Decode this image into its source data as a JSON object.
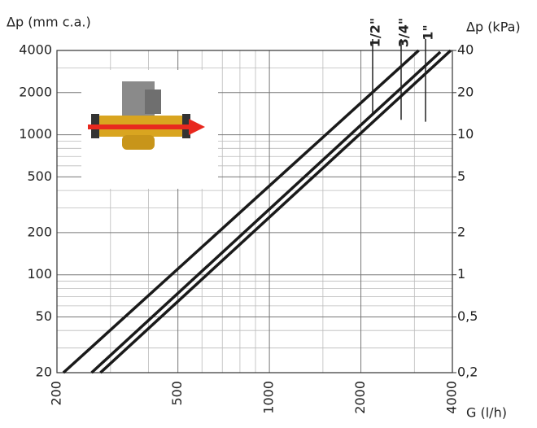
{
  "chart_data": {
    "type": "line",
    "y_label": "Δp (mm c.a.)",
    "y2_label": "Δp (kPa)",
    "x_label": "G (l/h)",
    "xscale": "log",
    "yscale": "log",
    "xlim": [
      200,
      4000
    ],
    "xticks": [
      200,
      500,
      1000,
      2000,
      4000
    ],
    "ylim": [
      20,
      4000
    ],
    "yticks": [
      20,
      50,
      100,
      200,
      500,
      1000,
      2000,
      4000
    ],
    "y2lim": [
      0.2,
      40
    ],
    "y2ticks": [
      {
        "value": 0.2,
        "label": "0,2"
      },
      {
        "value": 0.5,
        "label": "0,5"
      },
      1,
      2,
      5,
      10,
      20,
      40
    ],
    "x_minor_grid": [
      300,
      400,
      600,
      700,
      800,
      900,
      1500,
      3000
    ],
    "y_minor_grid": [
      30,
      40,
      60,
      70,
      80,
      90,
      300,
      400,
      600,
      700,
      800,
      900,
      3000
    ],
    "grid": true,
    "series": [
      {
        "name": "1/2\"",
        "color": "#1a1a1a",
        "x": [
          210,
          3100
        ],
        "values": [
          20,
          4000
        ]
      },
      {
        "name": "3/4\"",
        "color": "#1a1a1a",
        "x": [
          260,
          3650
        ],
        "values": [
          20,
          3900
        ]
      },
      {
        "name": "1\"",
        "color": "#1a1a1a",
        "x": [
          278,
          3950
        ],
        "values": [
          20,
          4000
        ]
      }
    ]
  }
}
